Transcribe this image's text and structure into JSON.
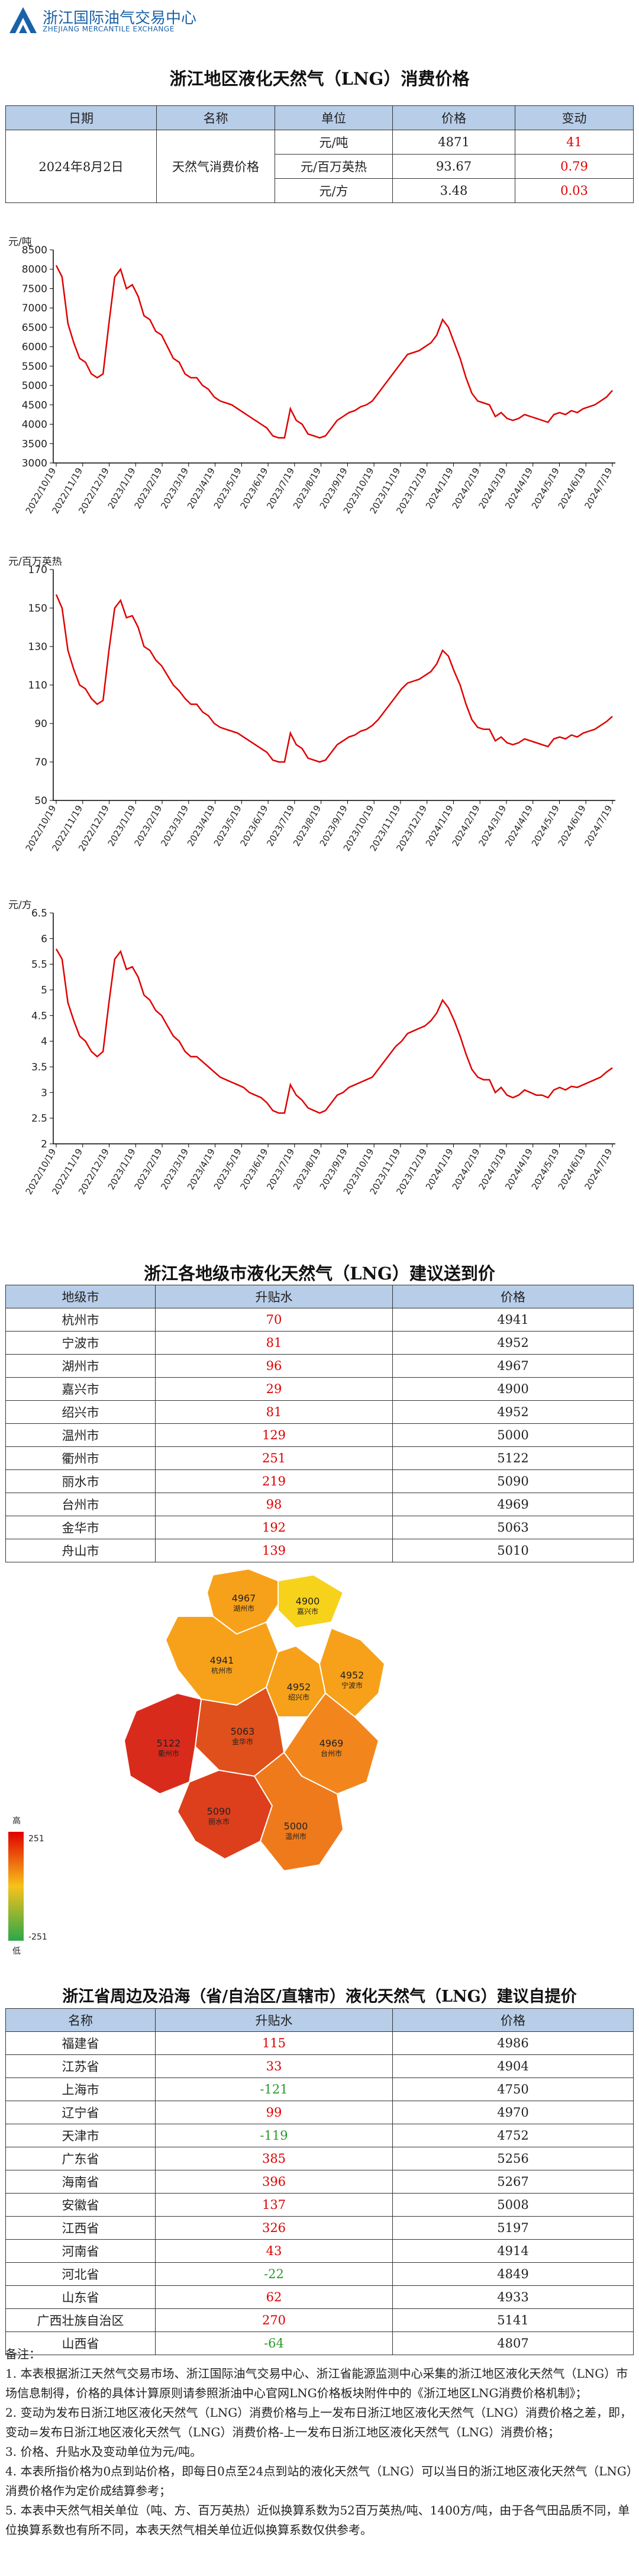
{
  "header": {
    "org_cn": "浙江国际油气交易中心",
    "org_en": "ZHEJIANG MERCANTILE EXCHANGE",
    "brand_color": "#1a62a8"
  },
  "price_section": {
    "title": "浙江地区液化天然气（LNG）消费价格",
    "headers": [
      "日期",
      "名称",
      "单位",
      "价格",
      "变动"
    ],
    "date": "2024年8月2日",
    "name": "天然气消费价格",
    "rows": [
      {
        "unit": "元/吨",
        "price": "4871",
        "change": "41"
      },
      {
        "unit": "元/百万英热",
        "price": "93.67",
        "change": "0.79"
      },
      {
        "unit": "元/方",
        "price": "3.48",
        "change": "0.03"
      }
    ]
  },
  "chart_data": [
    {
      "type": "line",
      "ylabel": "元/吨",
      "ylim": [
        3000,
        8500
      ],
      "yticks": [
        "3000",
        "3500",
        "4000",
        "4500",
        "5000",
        "5500",
        "6000",
        "6500",
        "7000",
        "7500",
        "8000",
        "8500"
      ],
      "xticks": [
        "2022/10/19",
        "2022/11/19",
        "2022/12/19",
        "2023/1/19",
        "2023/2/19",
        "2023/3/19",
        "2023/4/19",
        "2023/5/19",
        "2023/6/19",
        "2023/7/19",
        "2023/8/19",
        "2023/9/19",
        "2023/10/19",
        "2023/11/19",
        "2023/12/19",
        "2024/1/19",
        "2024/2/19",
        "2024/3/19",
        "2024/4/19",
        "2024/5/19",
        "2024/6/19",
        "2024/7/19"
      ],
      "series": [
        {
          "values": [
            8100,
            7800,
            6600,
            6100,
            5700,
            5600,
            5300,
            5200,
            5300,
            6600,
            7800,
            8000,
            7500,
            7600,
            7300,
            6800,
            6700,
            6400,
            6300,
            6000,
            5700,
            5600,
            5300,
            5200,
            5200,
            5000,
            4900,
            4700,
            4600,
            4550,
            4500,
            4400,
            4300,
            4200,
            4100,
            4000,
            3900,
            3700,
            3650,
            3650,
            4400,
            4100,
            4000,
            3750,
            3700,
            3650,
            3700,
            3900,
            4100,
            4200,
            4300,
            4350,
            4450,
            4500,
            4600,
            4800,
            5000,
            5200,
            5400,
            5600,
            5800,
            5850,
            5900,
            6000,
            6100,
            6300,
            6700,
            6500,
            6100,
            5700,
            5200,
            4800,
            4600,
            4550,
            4500,
            4200,
            4300,
            4150,
            4100,
            4150,
            4250,
            4200,
            4150,
            4100,
            4050,
            4250,
            4300,
            4250,
            4350,
            4300,
            4400,
            4450,
            4500,
            4600,
            4700,
            4871
          ]
        }
      ]
    },
    {
      "type": "line",
      "ylabel": "元/百万英热",
      "ylim": [
        50,
        170
      ],
      "yticks": [
        "50",
        "70",
        "90",
        "110",
        "130",
        "150",
        "170"
      ],
      "xticks": [
        "2022/10/19",
        "2022/11/19",
        "2022/12/19",
        "2023/1/19",
        "2023/2/19",
        "2023/3/19",
        "2023/4/19",
        "2023/5/19",
        "2023/6/19",
        "2023/7/19",
        "2023/8/19",
        "2023/9/19",
        "2023/10/19",
        "2023/11/19",
        "2023/12/19",
        "2024/1/19",
        "2024/2/19",
        "2024/3/19",
        "2024/4/19",
        "2024/5/19",
        "2024/6/19",
        "2024/7/19"
      ],
      "series": [
        {
          "values": [
            157,
            150,
            128,
            118,
            110,
            108,
            103,
            100,
            102,
            128,
            150,
            154,
            145,
            146,
            140,
            130,
            128,
            123,
            120,
            115,
            110,
            107,
            103,
            100,
            100,
            96,
            94,
            90,
            88,
            87,
            86,
            85,
            83,
            81,
            79,
            77,
            75,
            71,
            70,
            70,
            85,
            79,
            77,
            72,
            71,
            70,
            71,
            75,
            79,
            81,
            83,
            84,
            86,
            87,
            89,
            92,
            96,
            100,
            104,
            108,
            111,
            112,
            113,
            115,
            117,
            121,
            128,
            125,
            117,
            110,
            100,
            92,
            88,
            87,
            87,
            81,
            83,
            80,
            79,
            80,
            82,
            81,
            80,
            79,
            78,
            82,
            83,
            82,
            84,
            83,
            85,
            86,
            87,
            89,
            91,
            93.67
          ]
        }
      ]
    },
    {
      "type": "line",
      "ylabel": "元/方",
      "ylim": [
        2,
        6.5
      ],
      "yticks": [
        "2",
        "2.5",
        "3",
        "3.5",
        "4",
        "4.5",
        "5",
        "5.5",
        "6",
        "6.5"
      ],
      "xticks": [
        "2022/10/19",
        "2022/11/19",
        "2022/12/19",
        "2023/1/19",
        "2023/2/19",
        "2023/3/19",
        "2023/4/19",
        "2023/5/19",
        "2023/6/19",
        "2023/7/19",
        "2023/8/19",
        "2023/9/19",
        "2023/10/19",
        "2023/11/19",
        "2023/12/19",
        "2024/1/19",
        "2024/2/19",
        "2024/3/19",
        "2024/4/19",
        "2024/5/19",
        "2024/6/19",
        "2024/7/19"
      ],
      "series": [
        {
          "values": [
            5.8,
            5.6,
            4.75,
            4.4,
            4.1,
            4.0,
            3.8,
            3.7,
            3.8,
            4.75,
            5.6,
            5.75,
            5.4,
            5.45,
            5.25,
            4.9,
            4.8,
            4.6,
            4.5,
            4.3,
            4.1,
            4.0,
            3.8,
            3.7,
            3.7,
            3.6,
            3.5,
            3.4,
            3.3,
            3.25,
            3.2,
            3.15,
            3.1,
            3.0,
            2.95,
            2.9,
            2.8,
            2.65,
            2.6,
            2.6,
            3.15,
            2.95,
            2.85,
            2.7,
            2.65,
            2.6,
            2.65,
            2.8,
            2.95,
            3.0,
            3.1,
            3.15,
            3.2,
            3.25,
            3.3,
            3.45,
            3.6,
            3.75,
            3.9,
            4.0,
            4.15,
            4.2,
            4.25,
            4.3,
            4.4,
            4.55,
            4.8,
            4.65,
            4.4,
            4.1,
            3.75,
            3.45,
            3.3,
            3.25,
            3.25,
            3.0,
            3.1,
            2.95,
            2.9,
            2.95,
            3.05,
            3.0,
            2.95,
            2.95,
            2.9,
            3.05,
            3.1,
            3.05,
            3.12,
            3.1,
            3.15,
            3.2,
            3.25,
            3.3,
            3.4,
            3.48
          ]
        }
      ]
    }
  ],
  "city_section": {
    "title": "浙江各地级市液化天然气（LNG）建议送到价",
    "headers": [
      "地级市",
      "升贴水",
      "价格"
    ],
    "rows": [
      {
        "city": "杭州市",
        "diff": "70",
        "price": "4941"
      },
      {
        "city": "宁波市",
        "diff": "81",
        "price": "4952"
      },
      {
        "city": "湖州市",
        "diff": "96",
        "price": "4967"
      },
      {
        "city": "嘉兴市",
        "diff": "29",
        "price": "4900"
      },
      {
        "city": "绍兴市",
        "diff": "81",
        "price": "4952"
      },
      {
        "city": "温州市",
        "diff": "129",
        "price": "5000"
      },
      {
        "city": "衢州市",
        "diff": "251",
        "price": "5122"
      },
      {
        "city": "丽水市",
        "diff": "219",
        "price": "5090"
      },
      {
        "city": "台州市",
        "diff": "98",
        "price": "4969"
      },
      {
        "city": "金华市",
        "diff": "192",
        "price": "5063"
      },
      {
        "city": "舟山市",
        "diff": "139",
        "price": "5010"
      }
    ]
  },
  "map": {
    "legend_high": "高",
    "legend_low": "低",
    "legend_max": "251",
    "legend_min": "-251",
    "regions": [
      {
        "price": "4967",
        "name": "湖州市",
        "color": "#f7a11a"
      },
      {
        "price": "4900",
        "name": "嘉兴市",
        "color": "#f7d21a"
      },
      {
        "price": "4941",
        "name": "杭州市",
        "color": "#f7a11a"
      },
      {
        "price": "4952",
        "name": "绍兴市",
        "color": "#f7a11a"
      },
      {
        "price": "4952",
        "name": "宁波市",
        "color": "#f7a11a"
      },
      {
        "price": "5063",
        "name": "金华市",
        "color": "#e0501c"
      },
      {
        "price": "5122",
        "name": "衢州市",
        "color": "#d92b1c"
      },
      {
        "price": "4969",
        "name": "台州市",
        "color": "#f2861c"
      },
      {
        "price": "5090",
        "name": "丽水市",
        "color": "#dd3f1c"
      },
      {
        "price": "5000",
        "name": "温州市",
        "color": "#ef7a1c"
      }
    ]
  },
  "prov_section": {
    "title": "浙江省周边及沿海（省/自治区/直辖市）液化天然气（LNG）建议自提价",
    "headers": [
      "名称",
      "升贴水",
      "价格"
    ],
    "rows": [
      {
        "name": "福建省",
        "diff": "115",
        "price": "4986",
        "tone": "red"
      },
      {
        "name": "江苏省",
        "diff": "33",
        "price": "4904",
        "tone": "red"
      },
      {
        "name": "上海市",
        "diff": "-121",
        "price": "4750",
        "tone": "green"
      },
      {
        "name": "辽宁省",
        "diff": "99",
        "price": "4970",
        "tone": "red"
      },
      {
        "name": "天津市",
        "diff": "-119",
        "price": "4752",
        "tone": "green"
      },
      {
        "name": "广东省",
        "diff": "385",
        "price": "5256",
        "tone": "red"
      },
      {
        "name": "海南省",
        "diff": "396",
        "price": "5267",
        "tone": "red"
      },
      {
        "name": "安徽省",
        "diff": "137",
        "price": "5008",
        "tone": "red"
      },
      {
        "name": "江西省",
        "diff": "326",
        "price": "5197",
        "tone": "red"
      },
      {
        "name": "河南省",
        "diff": "43",
        "price": "4914",
        "tone": "red"
      },
      {
        "name": "河北省",
        "diff": "-22",
        "price": "4849",
        "tone": "green"
      },
      {
        "name": "山东省",
        "diff": "62",
        "price": "4933",
        "tone": "red"
      },
      {
        "name": "广西壮族自治区",
        "diff": "270",
        "price": "5141",
        "tone": "red"
      },
      {
        "name": "山西省",
        "diff": "-64",
        "price": "4807",
        "tone": "green"
      }
    ]
  },
  "notes": {
    "title": "备注：",
    "items": [
      "1. 本表根据浙江天然气交易市场、浙江国际油气交易中心、浙江省能源监测中心采集的浙江地区液化天然气（LNG）市场信息制得，价格的具体计算原则请参照浙油中心官网LNG价格板块附件中的《浙江地区LNG消费价格机制》；",
      "2. 变动为发布日浙江地区液化天然气（LNG）消费价格与上一发布日浙江地区液化天然气（LNG）消费价格之差，即，变动=发布日浙江地区液化天然气（LNG）消费价格-上一发布日浙江地区液化天然气（LNG）消费价格；",
      "3. 价格、升贴水及变动单位为元/吨。",
      "4. 本表所指价格为0点到站价格，即每日0点至24点到站的液化天然气（LNG）可以当日的浙江地区液化天然气（LNG）消费价格作为定价成结算参考；",
      "5. 本表中天然气相关单位（吨、方、百万英热）近似换算系数为52百万英热/吨、1400方/吨，由于各气田品质不同，单位换算系数也有所不同，本表天然气相关单位近似换算系数仅供参考。"
    ]
  }
}
